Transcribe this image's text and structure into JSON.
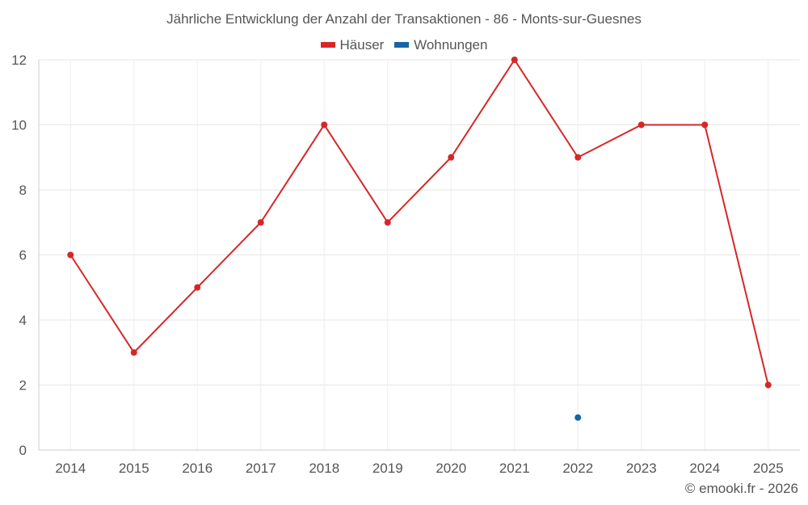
{
  "chart_data": {
    "type": "line",
    "title": "Jährliche Entwicklung der Anzahl der Transaktionen - 86 - Monts-sur-Guesnes",
    "categories": [
      "2014",
      "2015",
      "2016",
      "2017",
      "2018",
      "2019",
      "2020",
      "2021",
      "2022",
      "2023",
      "2024",
      "2025"
    ],
    "series": [
      {
        "name": "Häuser",
        "color": "#d62728",
        "values": [
          6,
          3,
          5,
          7,
          10,
          7,
          9,
          12,
          9,
          10,
          10,
          2
        ]
      },
      {
        "name": "Wohnungen",
        "color": "#1565a6",
        "values": [
          null,
          null,
          null,
          null,
          null,
          null,
          null,
          null,
          1,
          null,
          null,
          null
        ]
      }
    ],
    "yticks": [
      "0",
      "2",
      "4",
      "6",
      "8",
      "10",
      "12"
    ],
    "ylim": [
      0,
      12
    ],
    "xlabel": "",
    "ylabel": "",
    "grid": true,
    "legend_position": "top-center"
  },
  "footer": "© emooki.fr - 2026"
}
